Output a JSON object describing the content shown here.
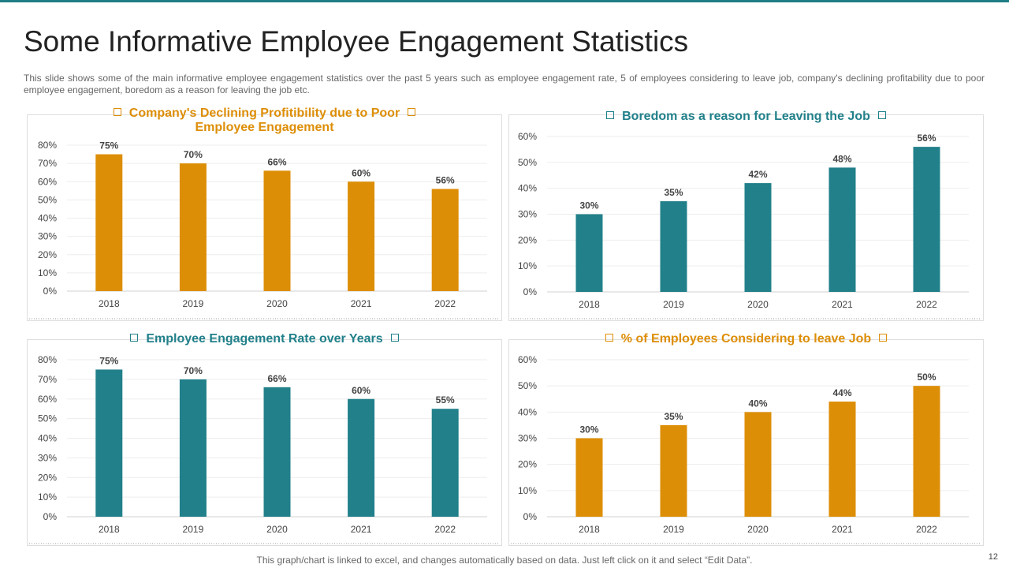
{
  "slide": {
    "title": "Some Informative Employee Engagement Statistics",
    "subtitle": "This slide shows some of the main informative employee engagement statistics over the past 5 years such as employee engagement rate, 5 of employees considering to leave job, company's declining profitability due to poor employee engagement, boredom as a reason for leaving the job etc.",
    "footer": "This graph/chart is linked to excel, and changes automatically based on data. Just left click on it and select “Edit Data”.",
    "page_number": "12",
    "colors": {
      "accent_orange": "#dd8e07",
      "accent_teal": "#21808a",
      "rule": "#1f7d86"
    }
  },
  "chart_data": [
    {
      "type": "bar",
      "title": "Company's Declining Profitibility  due to Poor Employee Engagement",
      "title_lines": [
        "Company's Declining Profitibility  due to Poor",
        "Employee Engagement"
      ],
      "categories": [
        "2018",
        "2019",
        "2020",
        "2021",
        "2022"
      ],
      "values": [
        75,
        70,
        66,
        60,
        56
      ],
      "data_labels": [
        "75%",
        "70%",
        "66%",
        "60%",
        "56%"
      ],
      "yticks": [
        "0%",
        "10%",
        "20%",
        "30%",
        "40%",
        "50%",
        "60%",
        "70%",
        "80%"
      ],
      "ylim": [
        0,
        80
      ],
      "color": "#dd8e07",
      "title_color": "#dd8e07",
      "grid": true
    },
    {
      "type": "bar",
      "title": "Boredom as a reason for Leaving the Job",
      "title_lines": [
        "Boredom as a reason for Leaving the Job"
      ],
      "categories": [
        "2018",
        "2019",
        "2020",
        "2021",
        "2022"
      ],
      "values": [
        30,
        35,
        42,
        48,
        56
      ],
      "data_labels": [
        "30%",
        "35%",
        "42%",
        "48%",
        "56%"
      ],
      "yticks": [
        "0%",
        "10%",
        "20%",
        "30%",
        "40%",
        "50%",
        "60%"
      ],
      "ylim": [
        0,
        60
      ],
      "color": "#21808a",
      "title_color": "#21808a",
      "grid": true
    },
    {
      "type": "bar",
      "title": "Employee Engagement Rate over Years",
      "title_lines": [
        "Employee Engagement Rate over Years"
      ],
      "categories": [
        "2018",
        "2019",
        "2020",
        "2021",
        "2022"
      ],
      "values": [
        75,
        70,
        66,
        60,
        55
      ],
      "data_labels": [
        "75%",
        "70%",
        "66%",
        "60%",
        "55%"
      ],
      "yticks": [
        "0%",
        "10%",
        "20%",
        "30%",
        "40%",
        "50%",
        "60%",
        "70%",
        "80%"
      ],
      "ylim": [
        0,
        80
      ],
      "color": "#21808a",
      "title_color": "#21808a",
      "grid": true
    },
    {
      "type": "bar",
      "title": "% of Employees Considering to leave Job",
      "title_lines": [
        "% of Employees Considering to leave Job"
      ],
      "categories": [
        "2018",
        "2019",
        "2020",
        "2021",
        "2022"
      ],
      "values": [
        30,
        35,
        40,
        44,
        50
      ],
      "data_labels": [
        "30%",
        "35%",
        "40%",
        "44%",
        "50%"
      ],
      "yticks": [
        "0%",
        "10%",
        "20%",
        "30%",
        "40%",
        "50%",
        "60%"
      ],
      "ylim": [
        0,
        60
      ],
      "color": "#dd8e07",
      "title_color": "#dd8e07",
      "grid": true
    }
  ]
}
